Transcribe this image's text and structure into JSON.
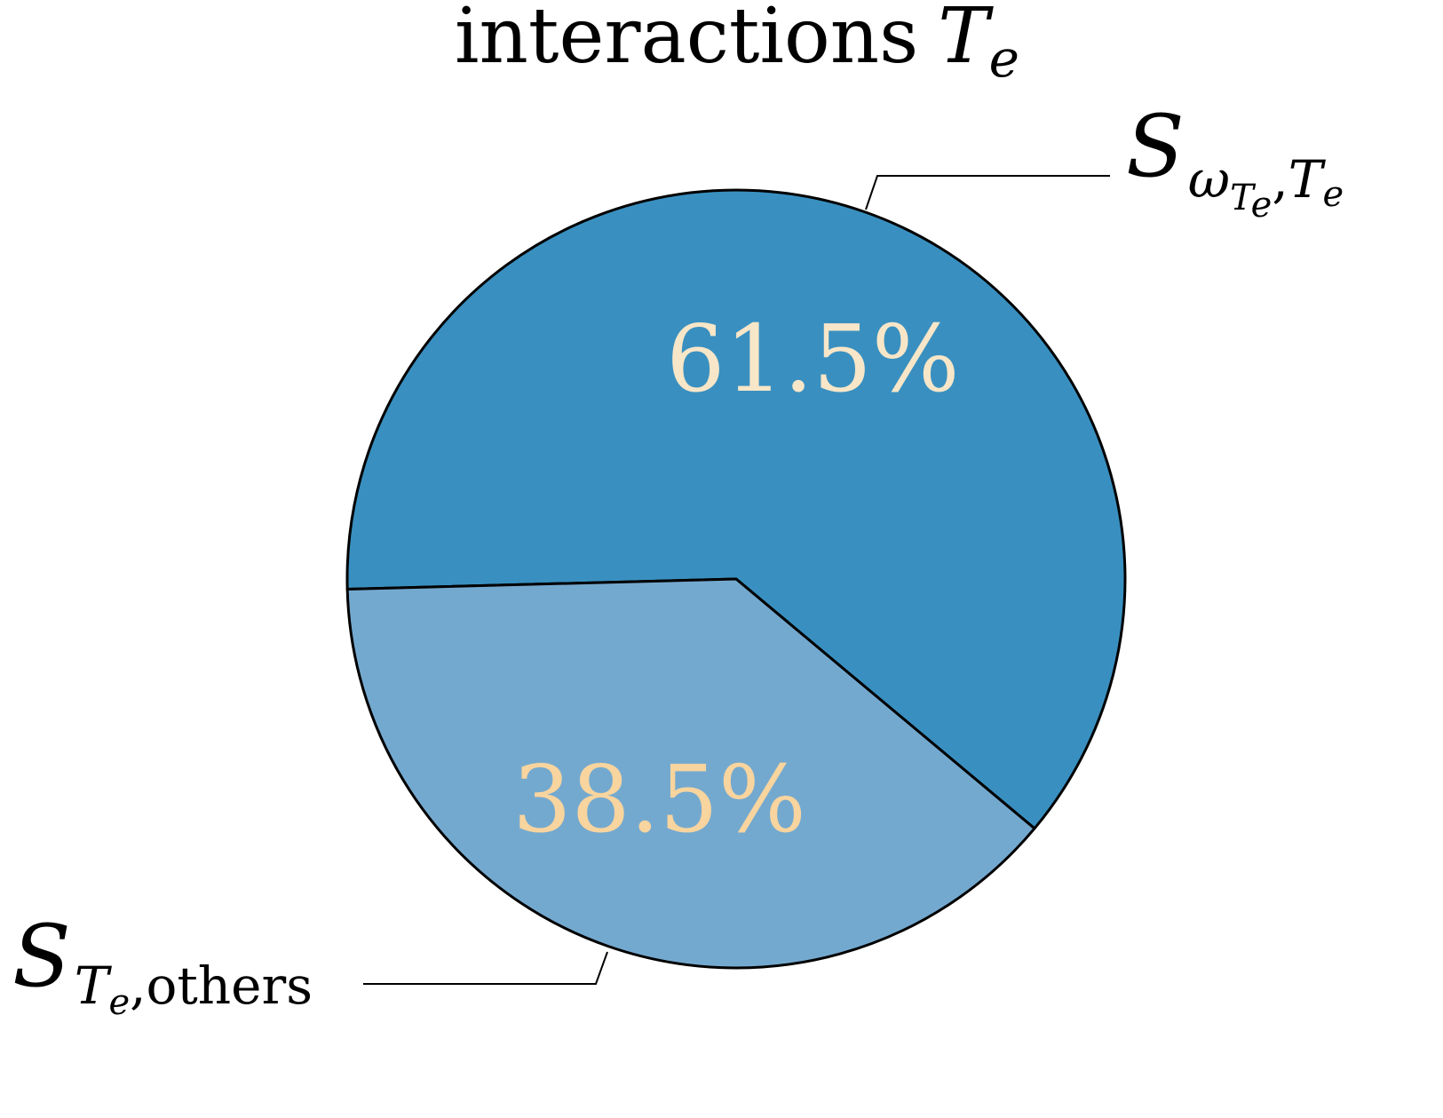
{
  "chart_data": {
    "type": "pie",
    "title": {
      "text": "interactions",
      "math_symbol": "T",
      "math_subscript": "e"
    },
    "slices": [
      {
        "name": "S_{ω_{Te},Te}",
        "legend_main": "S",
        "legend_sub_parts": [
          "ω",
          "T",
          "e",
          ",",
          "T",
          "e"
        ],
        "value": 61.5,
        "label": "61.5%",
        "color": "#3990c0",
        "label_color": "#f8e6c8"
      },
      {
        "name": "S_{Te,others}",
        "legend_main": "S",
        "legend_sub_parts": [
          "T",
          "e",
          ",others"
        ],
        "value": 38.5,
        "label": "38.5%",
        "color": "#74a9cf",
        "label_color": "#f8d49e"
      }
    ],
    "start_angle_deg": 181.5,
    "direction": "clockwise",
    "edge_color": "#000000"
  }
}
